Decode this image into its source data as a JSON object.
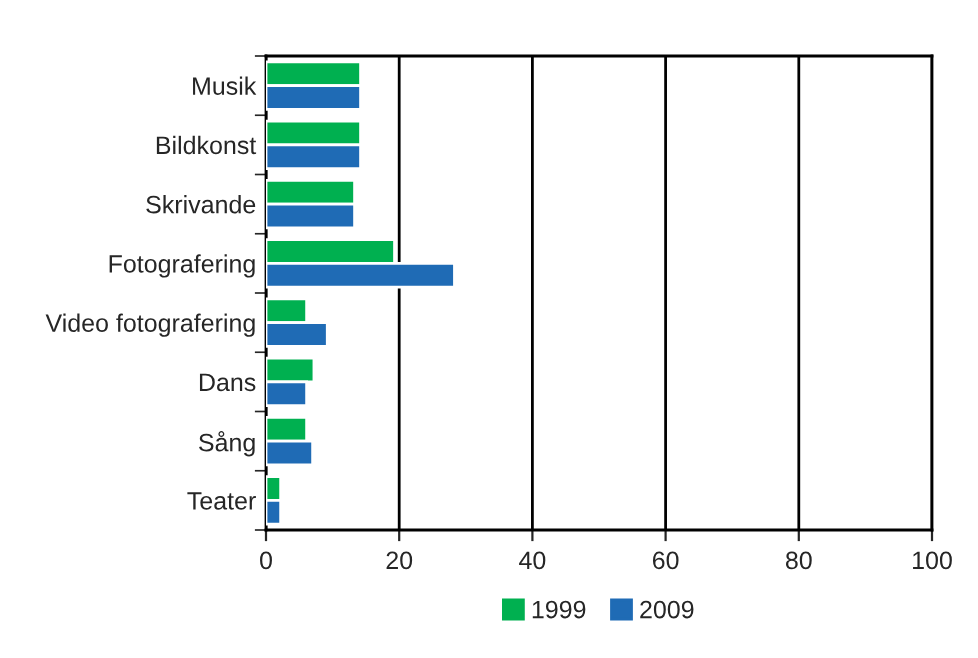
{
  "chart_data": {
    "type": "bar",
    "orientation": "horizontal",
    "categories": [
      "Musik",
      "Bildkonst",
      "Skrivande",
      "Fotografering",
      "Video fotografering",
      "Dans",
      "Sång",
      "Teater"
    ],
    "series": [
      {
        "name": "1999",
        "color": "#00b050",
        "values": [
          14.2,
          14.2,
          13.3,
          19.3,
          6.1,
          7.2,
          6.1,
          2.2
        ]
      },
      {
        "name": "2009",
        "color": "#1f6bb5",
        "values": [
          14.2,
          14.2,
          13.3,
          28.3,
          9.2,
          6.1,
          7.0,
          2.2
        ]
      }
    ],
    "xlim": [
      0,
      100
    ],
    "xticks": [
      0,
      20,
      40,
      60,
      80,
      100
    ],
    "grid": "x",
    "legend": "bottom"
  }
}
